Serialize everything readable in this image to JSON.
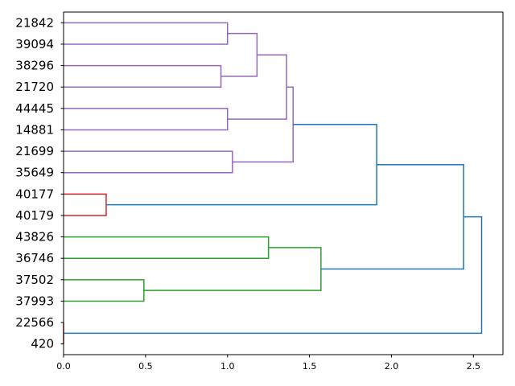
{
  "chart_data": {
    "type": "dendrogram",
    "orientation": "horizontal",
    "leaves": [
      "21842",
      "39094",
      "38296",
      "21720",
      "44445",
      "14881",
      "21699",
      "35649",
      "40177",
      "40179",
      "43826",
      "36746",
      "37502",
      "37993",
      "22566",
      "420"
    ],
    "x_ticks": [
      "0.0",
      "0.5",
      "1.0",
      "1.5",
      "2.0",
      "2.5"
    ],
    "xlim": [
      0,
      2.68
    ],
    "colors": {
      "purple": "#9467bd",
      "red": "#d62728",
      "green": "#2ca02c",
      "blue": "#1f77b4"
    },
    "merges": [
      {
        "id": "n1",
        "left": "21842",
        "right": "39094",
        "height": 1.0,
        "color": "purple"
      },
      {
        "id": "n2",
        "left": "38296",
        "right": "21720",
        "height": 0.96,
        "color": "purple"
      },
      {
        "id": "n3",
        "left": "n1",
        "right": "n2",
        "height": 1.18,
        "color": "purple"
      },
      {
        "id": "n4",
        "left": "44445",
        "right": "14881",
        "height": 1.0,
        "color": "purple"
      },
      {
        "id": "n5",
        "left": "n3",
        "right": "n4",
        "height": 1.36,
        "color": "purple"
      },
      {
        "id": "n6",
        "left": "21699",
        "right": "35649",
        "height": 1.03,
        "color": "purple"
      },
      {
        "id": "n7",
        "left": "n5",
        "right": "n6",
        "height": 1.4,
        "color": "purple"
      },
      {
        "id": "n8",
        "left": "40177",
        "right": "40179",
        "height": 0.26,
        "color": "red"
      },
      {
        "id": "n9",
        "left": "n7",
        "right": "n8",
        "height": 1.91,
        "color": "blue"
      },
      {
        "id": "n10",
        "left": "43826",
        "right": "36746",
        "height": 1.25,
        "color": "green"
      },
      {
        "id": "n11",
        "left": "37502",
        "right": "37993",
        "height": 0.49,
        "color": "green"
      },
      {
        "id": "n12",
        "left": "n10",
        "right": "n11",
        "height": 1.57,
        "color": "green"
      },
      {
        "id": "n13",
        "left": "n9",
        "right": "n12",
        "height": 2.44,
        "color": "blue"
      },
      {
        "id": "n14",
        "left": "22566",
        "right": "420",
        "height": 0.0,
        "color": "red"
      },
      {
        "id": "n15",
        "left": "n13",
        "right": "n14",
        "height": 2.55,
        "color": "blue"
      }
    ]
  }
}
